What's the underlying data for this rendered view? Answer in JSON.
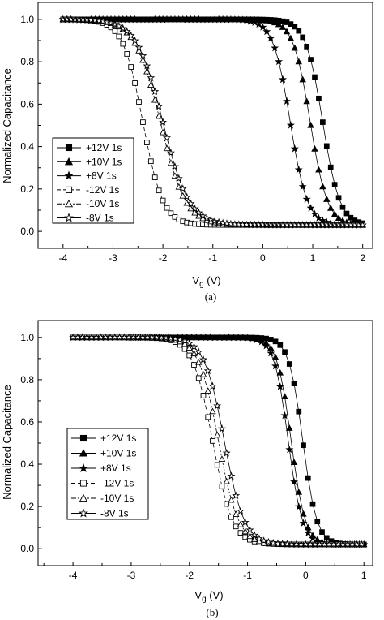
{
  "chart_data": [
    {
      "type": "line",
      "panel_label": "(a)",
      "xlabel": "V",
      "xlabel_sub": "g",
      "xlabel_unit": " (V)",
      "ylabel": "Normalized Capacitance",
      "xlim": [
        -4.5,
        2.2
      ],
      "ylim": [
        -0.08,
        1.08
      ],
      "xticks": [
        -4,
        -3,
        -2,
        -1,
        0,
        1,
        2
      ],
      "yticks": [
        0.0,
        0.2,
        0.4,
        0.6,
        0.8,
        1.0
      ],
      "xtick_labels": [
        "-4",
        "-3",
        "-2",
        "-1",
        "0",
        "1",
        "2"
      ],
      "ytick_labels": [
        "0.0",
        "0.2",
        "0.4",
        "0.6",
        "0.8",
        "1.0"
      ],
      "grid": false,
      "legend_position": "lower-left",
      "series": [
        {
          "name": "+12V 1s",
          "marker": "square-filled",
          "v0": 1.2,
          "k": 0.17,
          "floor": 0.03,
          "x_start": -4.0,
          "x_end": 2.0
        },
        {
          "name": "+10V 1s",
          "marker": "triangle-filled",
          "v0": 0.95,
          "k": 0.17,
          "floor": 0.03,
          "x_start": -4.0,
          "x_end": 2.0
        },
        {
          "name": "+8V 1s",
          "marker": "star-filled",
          "v0": 0.55,
          "k": 0.17,
          "floor": 0.03,
          "x_start": -4.0,
          "x_end": 2.0
        },
        {
          "name": "-12V 1s",
          "marker": "square-open",
          "v0": -2.4,
          "k": 0.2,
          "floor": 0.03,
          "x_start": -4.0,
          "x_end": 2.0
        },
        {
          "name": "-10V 1s",
          "marker": "triangle-open",
          "v0": -2.05,
          "k": 0.25,
          "floor": 0.03,
          "x_start": -4.0,
          "x_end": 2.0
        },
        {
          "name": "-8V 1s",
          "marker": "star-open",
          "v0": -2.0,
          "k": 0.26,
          "floor": 0.03,
          "x_start": -4.0,
          "x_end": 2.0
        }
      ]
    },
    {
      "type": "line",
      "panel_label": "(b)",
      "xlabel": "V",
      "xlabel_sub": "g",
      "xlabel_unit": " (V)",
      "ylabel": "Normalized Capacitance",
      "xlim": [
        -4.6,
        1.15
      ],
      "ylim": [
        -0.08,
        1.08
      ],
      "xticks": [
        -4,
        -3,
        -2,
        -1,
        0,
        1
      ],
      "yticks": [
        0.0,
        0.2,
        0.4,
        0.6,
        0.8,
        1.0
      ],
      "xtick_labels": [
        "-4",
        "-3",
        "-2",
        "-1",
        "0",
        "1"
      ],
      "ytick_labels": [
        "0.0",
        "0.2",
        "0.4",
        "0.6",
        "0.8",
        "1.0"
      ],
      "grid": false,
      "legend_position": "lower-left",
      "series": [
        {
          "name": "+12V 1s",
          "marker": "square-filled",
          "v0": -0.05,
          "k": 0.12,
          "floor": 0.02,
          "x_start": -3.0,
          "x_end": 1.0
        },
        {
          "name": "+10V 1s",
          "marker": "triangle-filled",
          "v0": -0.25,
          "k": 0.12,
          "floor": 0.02,
          "x_start": -3.0,
          "x_end": 1.0
        },
        {
          "name": "+8V 1s",
          "marker": "star-filled",
          "v0": -0.3,
          "k": 0.12,
          "floor": 0.02,
          "x_start": -3.0,
          "x_end": 1.0
        },
        {
          "name": "-12V 1s",
          "marker": "square-open",
          "v0": -1.6,
          "k": 0.17,
          "floor": 0.02,
          "x_start": -4.0,
          "x_end": 1.0
        },
        {
          "name": "-10V 1s",
          "marker": "triangle-open",
          "v0": -1.5,
          "k": 0.17,
          "floor": 0.02,
          "x_start": -4.0,
          "x_end": 1.0
        },
        {
          "name": "-8V 1s",
          "marker": "star-open",
          "v0": -1.4,
          "k": 0.17,
          "floor": 0.02,
          "x_start": -4.0,
          "x_end": 1.0
        }
      ]
    }
  ]
}
